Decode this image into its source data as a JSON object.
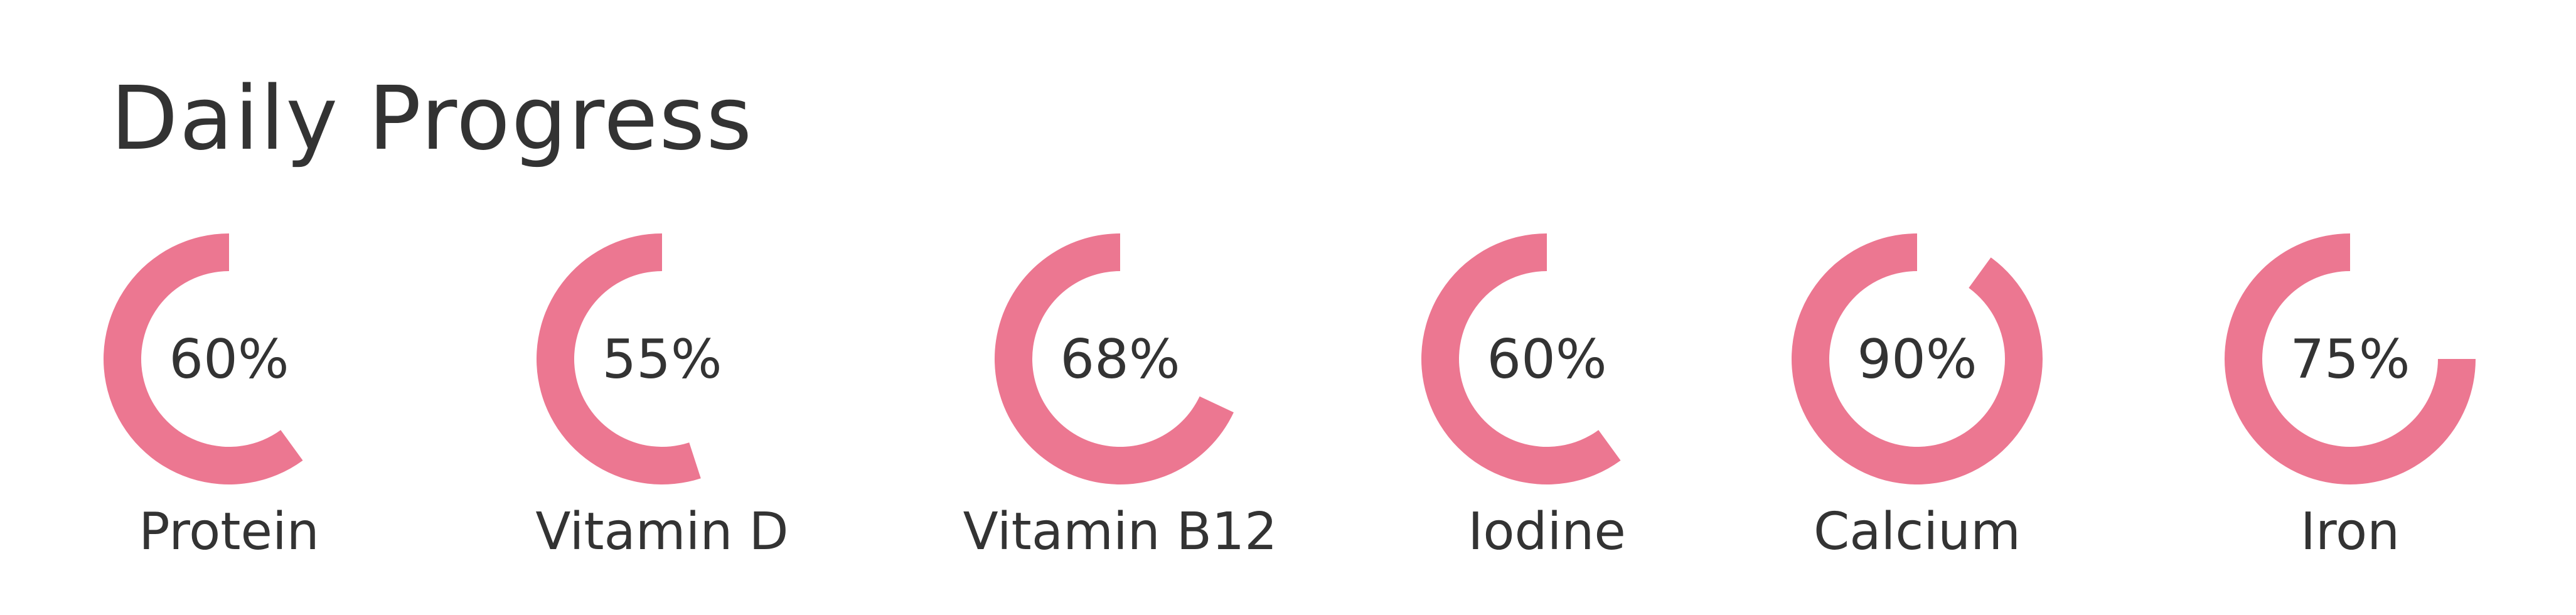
{
  "header": {
    "title": "Daily Progress"
  },
  "chart_data": {
    "type": "radial-progress",
    "title": "Daily Progress",
    "unit": "%",
    "colors": {
      "fill": "#EC7791",
      "text": "#333333"
    },
    "items": [
      {
        "name": "Protein",
        "value": 60,
        "label": "60%"
      },
      {
        "name": "Vitamin D",
        "value": 55,
        "label": "55%"
      },
      {
        "name": "Vitamin B12",
        "value": 68,
        "label": "68%"
      },
      {
        "name": "Iodine",
        "value": 60,
        "label": "60%"
      },
      {
        "name": "Calcium",
        "value": 90,
        "label": "90%"
      },
      {
        "name": "Iron",
        "value": 75,
        "label": "75%"
      }
    ]
  }
}
